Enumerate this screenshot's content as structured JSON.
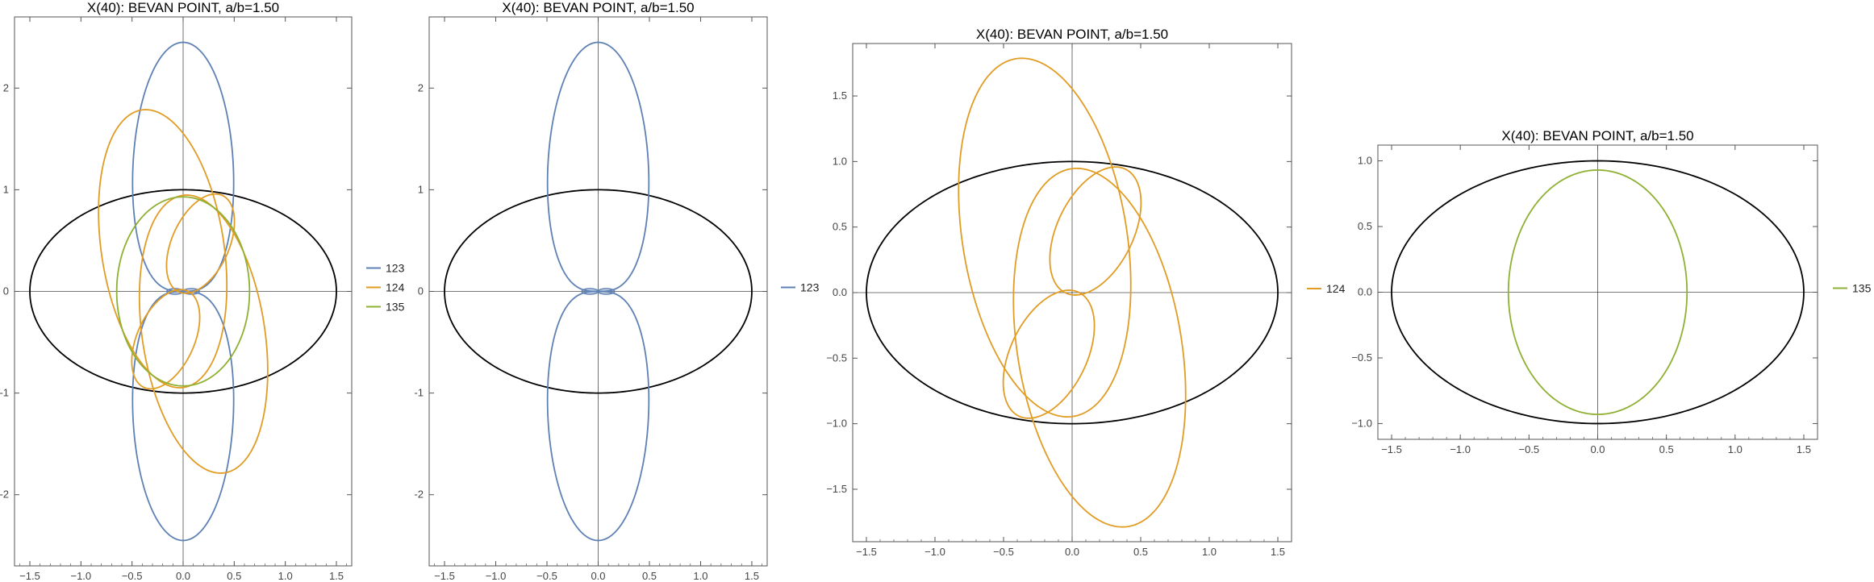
{
  "colors": {
    "ellipse": "#000000",
    "axes": "#000000",
    "frame": "#555555",
    "series_123": "#5E81B5",
    "series_124": "#E19C24",
    "series_135": "#8FB032"
  },
  "chart_data": [
    {
      "type": "line",
      "title": "X(40): BEVAN POINT, a/b=1.50",
      "xlim": [
        -1.65,
        1.65
      ],
      "ylim": [
        -2.7,
        2.7
      ],
      "xticks": [
        -1.5,
        -1.0,
        -0.5,
        0.0,
        0.5,
        1.0,
        1.5
      ],
      "yticks": [
        -2,
        -1,
        0,
        1,
        2
      ],
      "grid": false,
      "legend": "right",
      "ellipse": {
        "a": 1.5,
        "b": 1.0
      },
      "series": [
        {
          "name": "123",
          "shape": "lemniscate",
          "y_extent": [
            -2.45,
            2.45
          ],
          "x_extent": [
            -0.78,
            0.78
          ]
        },
        {
          "name": "124",
          "shape": "double-loop",
          "y_extent": [
            -1.7,
            1.7
          ],
          "x_extent": [
            -1.05,
            1.05
          ]
        },
        {
          "name": "135",
          "shape": "ellipse",
          "x_extent": [
            -0.65,
            0.65
          ],
          "y_extent": [
            -0.93,
            0.93
          ]
        }
      ]
    },
    {
      "type": "line",
      "title": "X(40): BEVAN POINT, a/b=1.50",
      "xlim": [
        -1.65,
        1.65
      ],
      "ylim": [
        -2.7,
        2.7
      ],
      "xticks": [
        -1.5,
        -1.0,
        -0.5,
        0.0,
        0.5,
        1.0,
        1.5
      ],
      "yticks": [
        -2,
        -1,
        0,
        1,
        2
      ],
      "grid": false,
      "legend": "right",
      "ellipse": {
        "a": 1.5,
        "b": 1.0
      },
      "series": [
        {
          "name": "123",
          "shape": "lemniscate",
          "y_extent": [
            -2.45,
            2.45
          ],
          "x_extent": [
            -0.78,
            0.78
          ]
        }
      ]
    },
    {
      "type": "line",
      "title": "X(40): BEVAN POINT, a/b=1.50",
      "xlim": [
        -1.6,
        1.6
      ],
      "ylim": [
        -1.9,
        1.9
      ],
      "xticks": [
        -1.5,
        -1.0,
        -0.5,
        0.0,
        0.5,
        1.0,
        1.5
      ],
      "yticks": [
        -1.5,
        -1.0,
        -0.5,
        0.0,
        0.5,
        1.0,
        1.5
      ],
      "grid": false,
      "legend": "right",
      "ellipse": {
        "a": 1.5,
        "b": 1.0
      },
      "series": [
        {
          "name": "124",
          "shape": "double-loop",
          "y_extent": [
            -1.7,
            1.7
          ],
          "x_extent": [
            -1.05,
            1.05
          ]
        }
      ]
    },
    {
      "type": "line",
      "title": "X(40): BEVAN POINT, a/b=1.50",
      "xlim": [
        -1.6,
        1.6
      ],
      "ylim": [
        -1.12,
        1.12
      ],
      "xticks": [
        -1.5,
        -1.0,
        -0.5,
        0.0,
        0.5,
        1.0,
        1.5
      ],
      "yticks": [
        -1.0,
        -0.5,
        0.0,
        0.5,
        1.0
      ],
      "grid": false,
      "legend": "right",
      "ellipse": {
        "a": 1.5,
        "b": 1.0
      },
      "series": [
        {
          "name": "135",
          "shape": "ellipse",
          "x_extent": [
            -0.65,
            0.65
          ],
          "y_extent": [
            -0.93,
            0.93
          ]
        }
      ]
    }
  ]
}
